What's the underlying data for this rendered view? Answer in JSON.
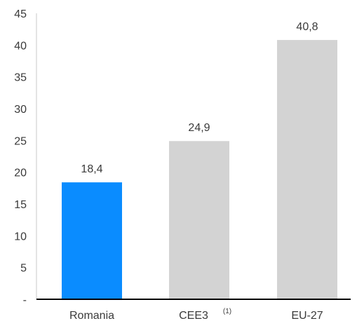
{
  "chart_data": {
    "type": "bar",
    "categories": [
      "Romania",
      "CEE3",
      "EU-27"
    ],
    "category_notes": [
      "",
      "(1)",
      ""
    ],
    "values": [
      18.4,
      24.9,
      40.8
    ],
    "value_labels": [
      "18,4",
      "24,9",
      "40,8"
    ],
    "ylim": [
      0,
      45
    ],
    "yticks": [
      0,
      5,
      10,
      15,
      20,
      25,
      30,
      35,
      40,
      45
    ],
    "ytick_labels": [
      "-",
      "5",
      "10",
      "15",
      "20",
      "25",
      "30",
      "35",
      "40",
      "45"
    ],
    "grid": false,
    "bar_colors": [
      "#0a8cff",
      "#d3d3d3",
      "#d3d3d3"
    ],
    "axis_color": "#000000",
    "yaxis_color": "#c8c8c8"
  }
}
